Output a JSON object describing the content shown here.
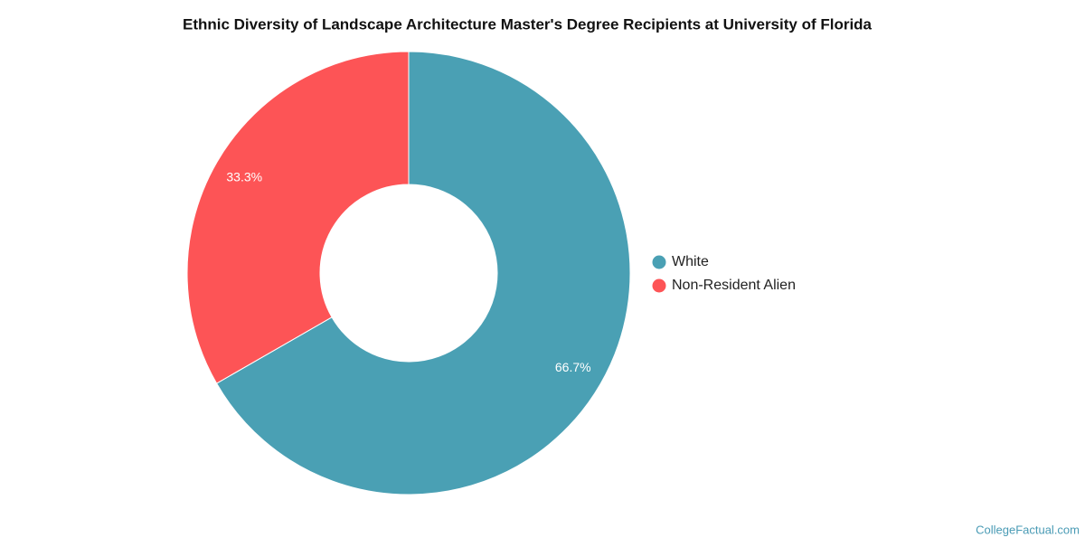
{
  "chart_data": {
    "type": "pie",
    "title": "Ethnic Diversity of Landscape Architecture Master's Degree Recipients at University of Florida",
    "categories": [
      "White",
      "Non-Resident Alien"
    ],
    "values": [
      66.7,
      33.3
    ],
    "value_labels": [
      "66.7%",
      "33.3%"
    ],
    "colors": [
      "#4aa0b4",
      "#fd5456"
    ],
    "donut": true,
    "legend": "right",
    "credit": "CollegeFactual.com"
  }
}
